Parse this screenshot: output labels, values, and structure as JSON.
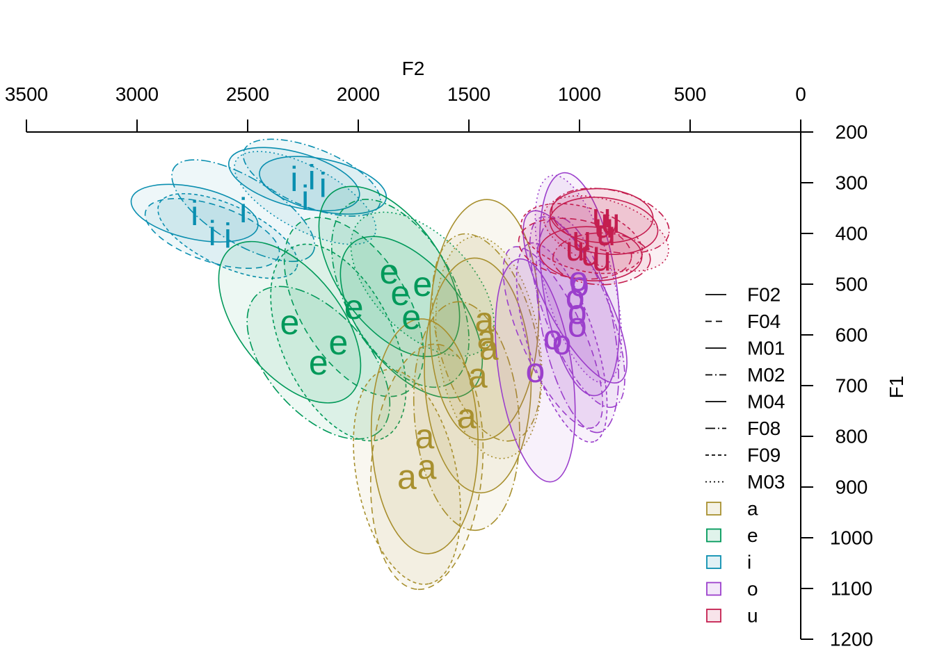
{
  "chart_data": {
    "type": "scatter",
    "title": "",
    "xlabel": "F2",
    "ylabel": "F1",
    "x_axis_position": "top",
    "y_axis_position": "right",
    "xlim": [
      3500,
      0
    ],
    "ylim": [
      200,
      1200
    ],
    "x_ticks": [
      "3500",
      "3000",
      "2500",
      "2000",
      "1500",
      "1000",
      "500",
      "0"
    ],
    "y_ticks": [
      "200",
      "300",
      "400",
      "500",
      "600",
      "700",
      "800",
      "900",
      "1000",
      "1100",
      "1200"
    ],
    "grid": false,
    "legend_position": "bottom-right",
    "speakers": [
      {
        "name": "F02",
        "dash": "solid"
      },
      {
        "name": "F04",
        "dash": "dashed"
      },
      {
        "name": "M01",
        "dash": "solid"
      },
      {
        "name": "M02",
        "dash": "dashdot"
      },
      {
        "name": "M04",
        "dash": "solid"
      },
      {
        "name": "F08",
        "dash": "longdash-dot"
      },
      {
        "name": "F09",
        "dash": "short-dashed"
      },
      {
        "name": "M03",
        "dash": "dotted"
      }
    ],
    "vowels": [
      {
        "label": "a",
        "color": "#a8902f"
      },
      {
        "label": "e",
        "color": "#00995a"
      },
      {
        "label": "i",
        "color": "#0a8fb0"
      },
      {
        "label": "o",
        "color": "#9b3fcc"
      },
      {
        "label": "u",
        "color": "#c41e4f"
      }
    ],
    "points": [
      {
        "vowel": "i",
        "speaker": "F02",
        "F2": 2740,
        "F1": 360
      },
      {
        "vowel": "i",
        "speaker": "F04",
        "F2": 2660,
        "F1": 400
      },
      {
        "vowel": "i",
        "speaker": "F09",
        "F2": 2590,
        "F1": 405
      },
      {
        "vowel": "i",
        "speaker": "F08",
        "F2": 2520,
        "F1": 355
      },
      {
        "vowel": "i",
        "speaker": "M01",
        "F2": 2290,
        "F1": 293
      },
      {
        "vowel": "i",
        "speaker": "M02",
        "F2": 2210,
        "F1": 290
      },
      {
        "vowel": "i",
        "speaker": "M03",
        "F2": 2240,
        "F1": 330
      },
      {
        "vowel": "i",
        "speaker": "M04",
        "F2": 2160,
        "F1": 305
      },
      {
        "vowel": "e",
        "speaker": "F02",
        "F2": 2310,
        "F1": 575
      },
      {
        "vowel": "e",
        "speaker": "F04",
        "F2": 2020,
        "F1": 545
      },
      {
        "vowel": "e",
        "speaker": "F09",
        "F2": 2090,
        "F1": 615
      },
      {
        "vowel": "e",
        "speaker": "F08",
        "F2": 2180,
        "F1": 655
      },
      {
        "vowel": "e",
        "speaker": "M01",
        "F2": 1860,
        "F1": 475
      },
      {
        "vowel": "e",
        "speaker": "M02",
        "F2": 1810,
        "F1": 518
      },
      {
        "vowel": "e",
        "speaker": "M03",
        "F2": 1710,
        "F1": 500
      },
      {
        "vowel": "e",
        "speaker": "M04",
        "F2": 1760,
        "F1": 565
      },
      {
        "vowel": "a",
        "speaker": "F02",
        "F2": 1700,
        "F1": 800
      },
      {
        "vowel": "a",
        "speaker": "F04",
        "F2": 1690,
        "F1": 860
      },
      {
        "vowel": "a",
        "speaker": "F09",
        "F2": 1780,
        "F1": 880
      },
      {
        "vowel": "a",
        "speaker": "F08",
        "F2": 1510,
        "F1": 760
      },
      {
        "vowel": "a",
        "speaker": "M01",
        "F2": 1430,
        "F1": 570
      },
      {
        "vowel": "a",
        "speaker": "M02",
        "F2": 1420,
        "F1": 605
      },
      {
        "vowel": "a",
        "speaker": "M03",
        "F2": 1410,
        "F1": 625
      },
      {
        "vowel": "a",
        "speaker": "M04",
        "F2": 1460,
        "F1": 680
      },
      {
        "vowel": "o",
        "speaker": "F02",
        "F2": 1200,
        "F1": 670
      },
      {
        "vowel": "o",
        "speaker": "F04",
        "F2": 1120,
        "F1": 605
      },
      {
        "vowel": "o",
        "speaker": "F09",
        "F2": 1080,
        "F1": 615
      },
      {
        "vowel": "o",
        "speaker": "F08",
        "F2": 1010,
        "F1": 580
      },
      {
        "vowel": "o",
        "speaker": "M01",
        "F2": 1020,
        "F1": 525
      },
      {
        "vowel": "o",
        "speaker": "M02",
        "F2": 1010,
        "F1": 555
      },
      {
        "vowel": "o",
        "speaker": "M03",
        "F2": 1005,
        "F1": 490
      },
      {
        "vowel": "o",
        "speaker": "M04",
        "F2": 1000,
        "F1": 500
      },
      {
        "vowel": "u",
        "speaker": "F02",
        "F2": 950,
        "F1": 440
      },
      {
        "vowel": "u",
        "speaker": "F04",
        "F2": 1020,
        "F1": 430
      },
      {
        "vowel": "u",
        "speaker": "F09",
        "F2": 990,
        "F1": 410
      },
      {
        "vowel": "u",
        "speaker": "F08",
        "F2": 900,
        "F1": 450
      },
      {
        "vowel": "u",
        "speaker": "M01",
        "F2": 890,
        "F1": 385
      },
      {
        "vowel": "u",
        "speaker": "M02",
        "F2": 860,
        "F1": 375
      },
      {
        "vowel": "u",
        "speaker": "M03",
        "F2": 880,
        "F1": 400
      },
      {
        "vowel": "u",
        "speaker": "M04",
        "F2": 900,
        "F1": 365
      }
    ]
  }
}
